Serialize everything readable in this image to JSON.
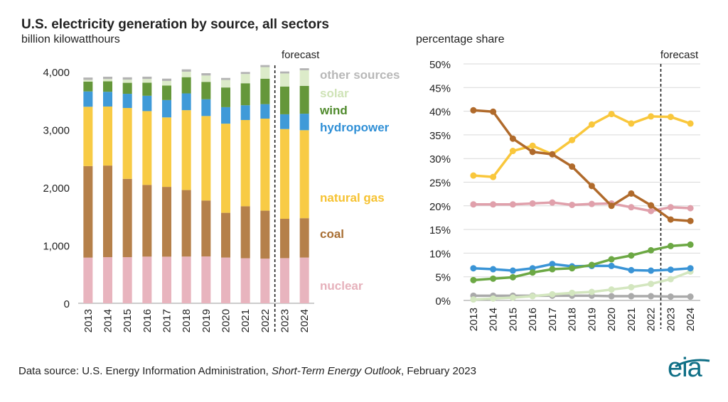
{
  "header": {
    "title": "U.S. electricity generation by source, all sectors",
    "subtitle": "billion kilowatthours",
    "right_ylabel": "percentage share"
  },
  "footer": {
    "source_prefix": "Data source: U.S. Energy Information Administration, ",
    "source_italic": "Short-Term Energy Outlook",
    "source_suffix": ", February 2023",
    "logo": "eia"
  },
  "chart_data": [
    {
      "type": "bar",
      "stacked": true,
      "categories": [
        "2013",
        "2014",
        "2015",
        "2016",
        "2017",
        "2018",
        "2019",
        "2020",
        "2021",
        "2022",
        "2023",
        "2024"
      ],
      "ylim": [
        0,
        4000
      ],
      "yticks": [
        0,
        1000,
        2000,
        3000,
        4000
      ],
      "ytick_labels": [
        "0",
        "1,000",
        "2,000",
        "3,000",
        "4,000"
      ],
      "forecast_label": "forecast",
      "forecast_start": "2023",
      "grid": false,
      "series": [
        {
          "name": "nuclear",
          "color": "#e8b4be",
          "values": [
            789,
            797,
            797,
            806,
            805,
            807,
            809,
            790,
            778,
            772,
            780,
            790
          ]
        },
        {
          "name": "coal",
          "color": "#b5804a",
          "values": [
            1581,
            1582,
            1352,
            1239,
            1206,
            1149,
            966,
            773,
            898,
            828,
            680,
            680
          ]
        },
        {
          "name": "natural gas",
          "color": "#f8cb45",
          "values": [
            1025,
            1020,
            1225,
            1275,
            1200,
            1380,
            1460,
            1540,
            1490,
            1590,
            1550,
            1520
          ]
        },
        {
          "name": "hydropower",
          "color": "#3f9ad8",
          "values": [
            265,
            255,
            245,
            265,
            300,
            290,
            290,
            285,
            255,
            250,
            255,
            285
          ]
        },
        {
          "name": "wind",
          "color": "#65973a",
          "values": [
            170,
            180,
            190,
            225,
            250,
            280,
            300,
            340,
            380,
            440,
            480,
            480
          ]
        },
        {
          "name": "solar",
          "color": "#dcebc9",
          "values": [
            30,
            40,
            55,
            65,
            80,
            95,
            110,
            130,
            160,
            200,
            225,
            270
          ]
        },
        {
          "name": "other sources",
          "color": "#b3b3b3",
          "values": [
            40,
            40,
            40,
            40,
            40,
            40,
            40,
            35,
            35,
            35,
            35,
            35
          ]
        }
      ]
    },
    {
      "type": "line",
      "x": [
        "2013",
        "2014",
        "2015",
        "2016",
        "2017",
        "2018",
        "2019",
        "2020",
        "2021",
        "2022",
        "2023",
        "2024"
      ],
      "ylim": [
        0,
        50
      ],
      "yticks": [
        0,
        5,
        10,
        15,
        20,
        25,
        30,
        35,
        40,
        45,
        50
      ],
      "ytick_labels": [
        "0%",
        "5%",
        "10%",
        "15%",
        "20%",
        "25%",
        "30%",
        "35%",
        "40%",
        "45%",
        "50%"
      ],
      "forecast_label": "forecast",
      "forecast_start": "2023",
      "grid": true,
      "series": [
        {
          "name": "coal",
          "color": "#b06a2b",
          "values": [
            40.2,
            39.9,
            34.2,
            31.4,
            30.9,
            28.3,
            24.2,
            20.0,
            22.6,
            20.1,
            17.1,
            16.8
          ]
        },
        {
          "name": "natural gas",
          "color": "#f9c73c",
          "values": [
            26.4,
            26.1,
            31.6,
            32.7,
            30.9,
            33.9,
            37.2,
            39.4,
            37.4,
            38.9,
            38.8,
            37.4
          ]
        },
        {
          "name": "nuclear",
          "color": "#e0a0ab",
          "values": [
            20.3,
            20.3,
            20.3,
            20.5,
            20.7,
            20.2,
            20.4,
            20.5,
            19.7,
            18.9,
            19.7,
            19.5
          ]
        },
        {
          "name": "wind",
          "color": "#6ca844",
          "values": [
            4.3,
            4.6,
            4.9,
            5.9,
            6.6,
            6.8,
            7.5,
            8.7,
            9.5,
            10.6,
            11.5,
            11.8
          ]
        },
        {
          "name": "hydropower",
          "color": "#3a94d6",
          "values": [
            6.8,
            6.6,
            6.3,
            6.8,
            7.7,
            7.2,
            7.3,
            7.3,
            6.4,
            6.3,
            6.5,
            6.8
          ]
        },
        {
          "name": "solar",
          "color": "#d3e6bf",
          "values": [
            0.2,
            0.4,
            0.6,
            0.9,
            1.3,
            1.6,
            1.8,
            2.3,
            2.8,
            3.5,
            4.5,
            6.1
          ]
        },
        {
          "name": "other sources",
          "color": "#aaaaaa",
          "values": [
            1.0,
            1.0,
            1.0,
            1.0,
            1.0,
            1.0,
            1.0,
            0.9,
            0.9,
            0.9,
            0.8,
            0.8
          ]
        }
      ]
    }
  ]
}
